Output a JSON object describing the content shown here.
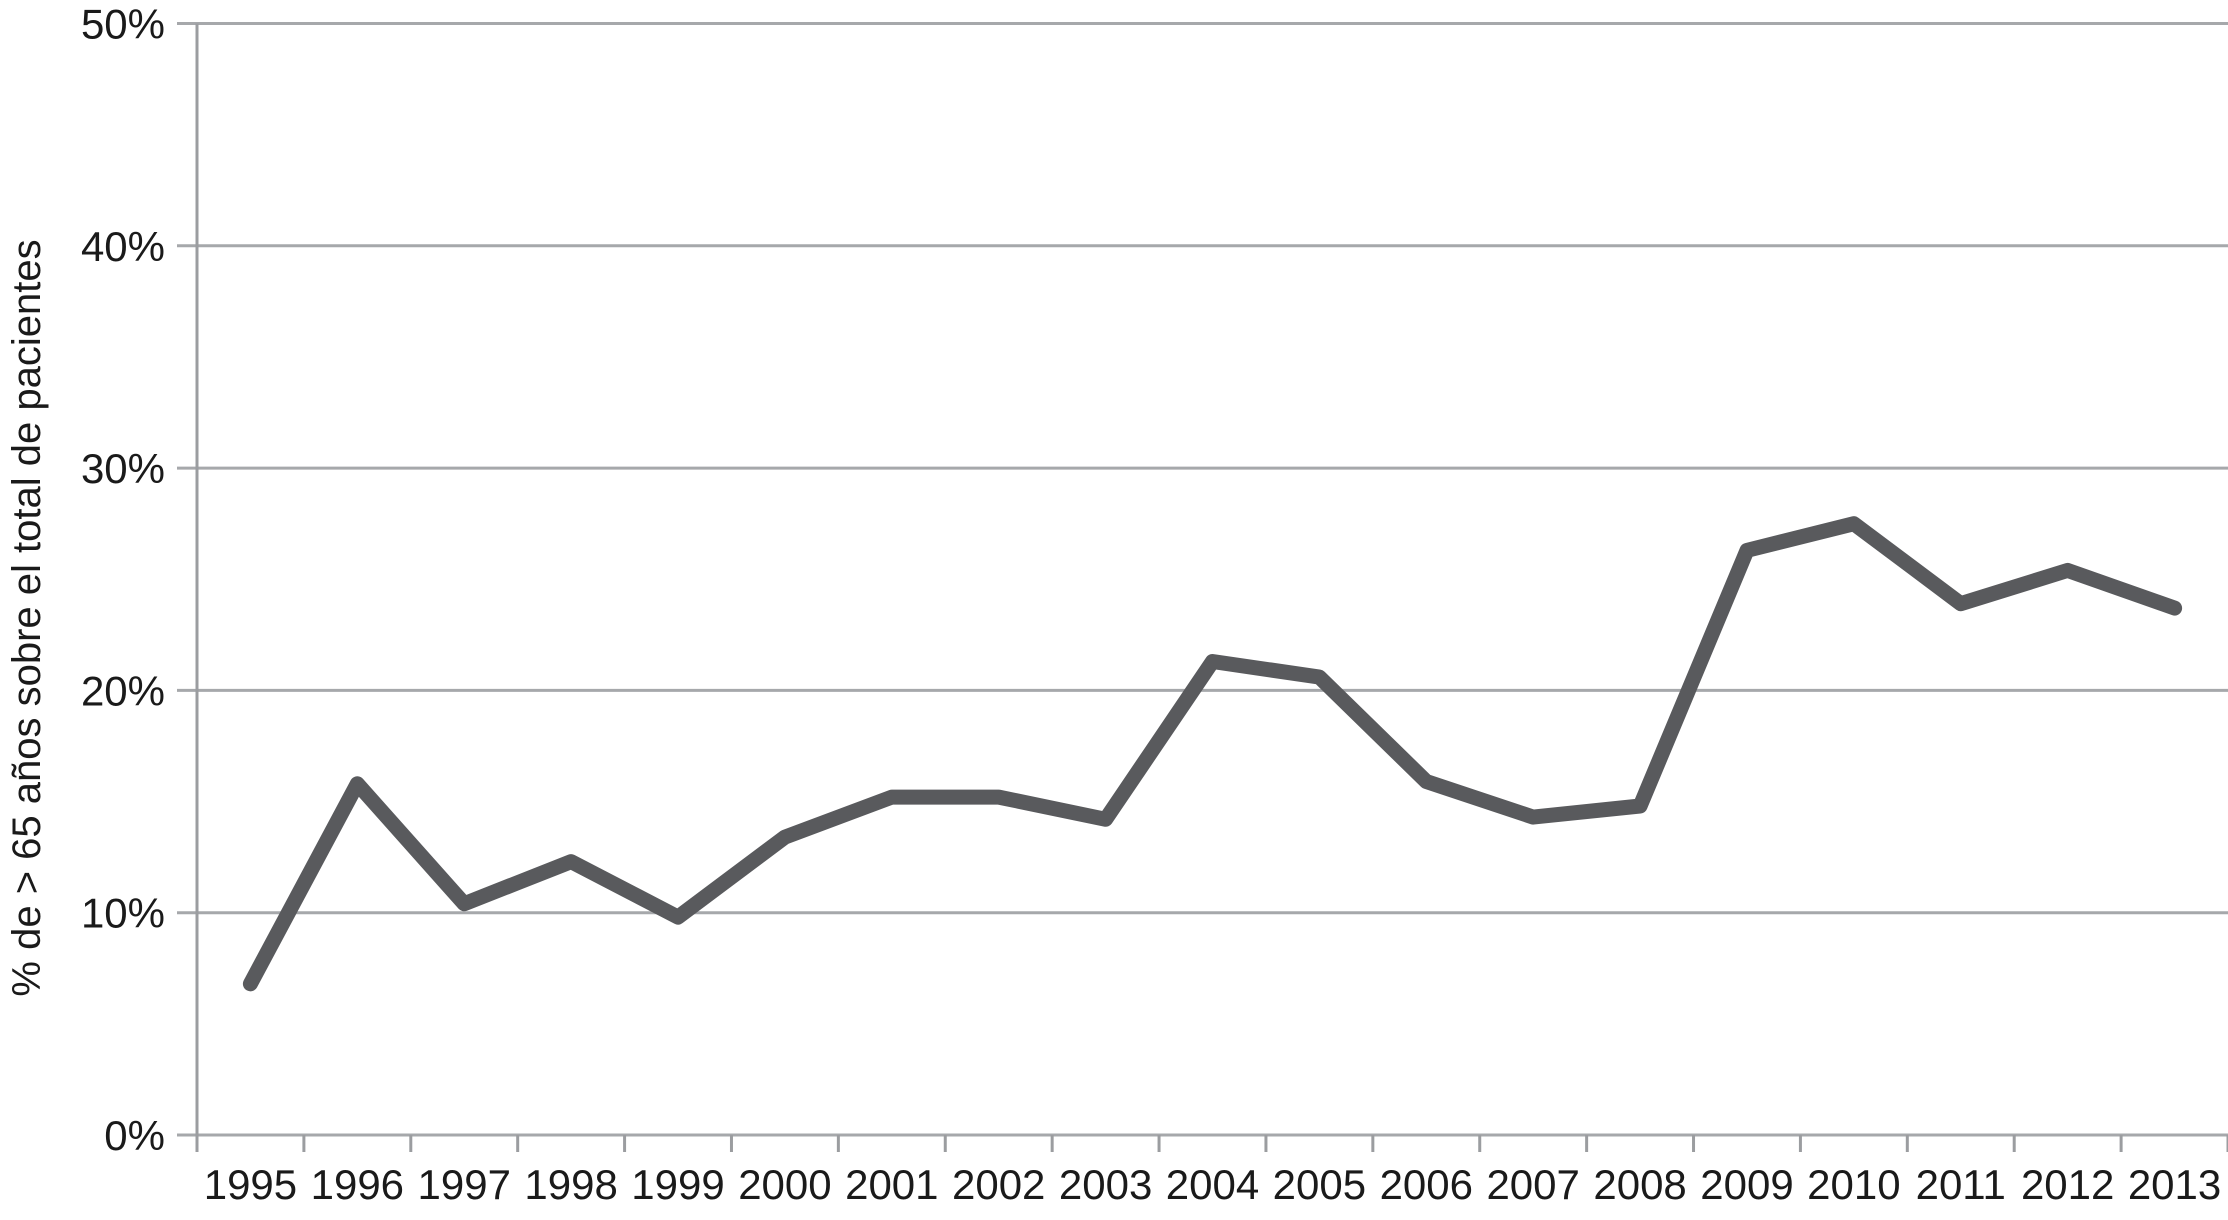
{
  "chart_data": {
    "type": "line",
    "title": "",
    "xlabel": "",
    "ylabel": "% de > 65 años sobre el total de pacientes",
    "categories": [
      "1995",
      "1996",
      "1997",
      "1998",
      "1999",
      "2000",
      "2001",
      "2002",
      "2003",
      "2004",
      "2005",
      "2006",
      "2007",
      "2008",
      "2009",
      "2010",
      "2011",
      "2012",
      "2013"
    ],
    "values": [
      6.8,
      15.8,
      10.4,
      12.3,
      9.8,
      13.4,
      15.2,
      15.2,
      14.2,
      21.3,
      20.6,
      15.9,
      14.3,
      14.8,
      26.3,
      27.5,
      23.9,
      25.4,
      23.7
    ],
    "ylim": [
      0,
      50
    ],
    "yticks": [
      0,
      10,
      20,
      30,
      40,
      50
    ],
    "ytick_labels": [
      "0%",
      "10%",
      "20%",
      "30%",
      "40%",
      "50%"
    ],
    "grid": true,
    "legend": false,
    "colors": {
      "line": "#595a5d",
      "grid": "#a6a8ab",
      "axis": "#9b9da0",
      "text": "#1a1a1a",
      "background": "#ffffff"
    }
  }
}
